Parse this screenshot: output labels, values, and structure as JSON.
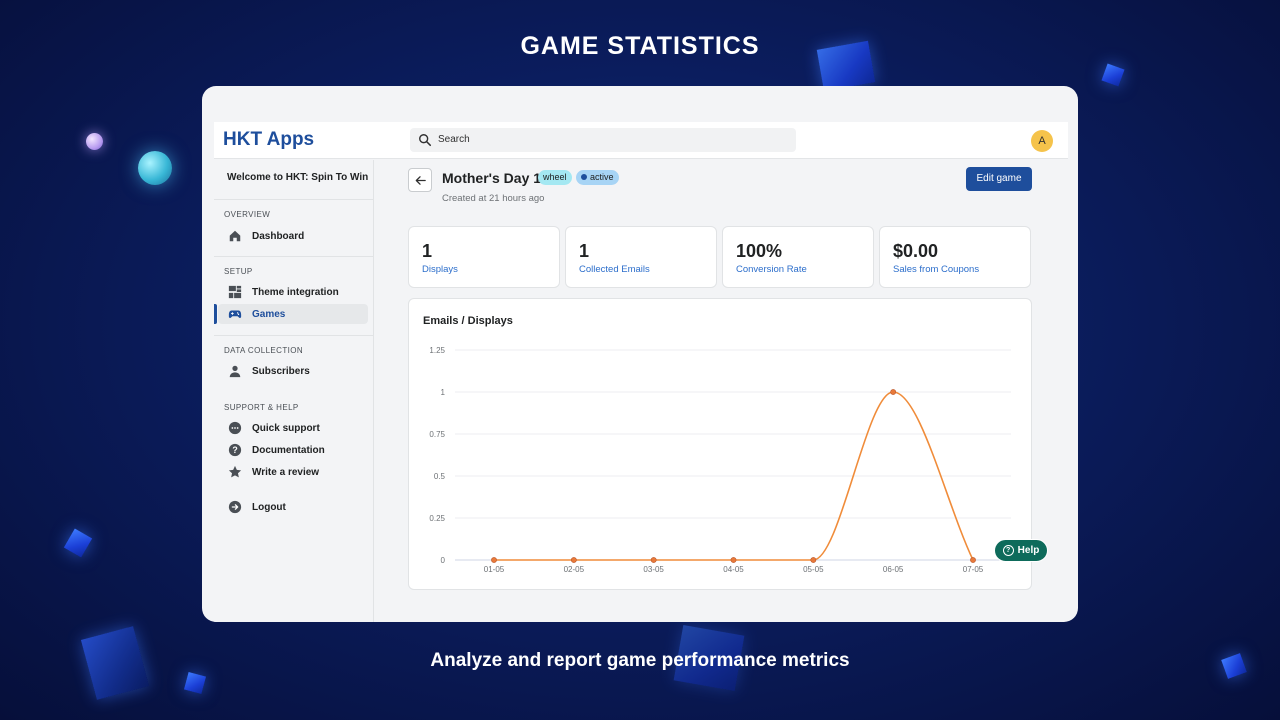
{
  "hero": {
    "title": "GAME STATISTICS",
    "caption": "Analyze and report game performance metrics"
  },
  "colors": {
    "brand": "#1e4e9c",
    "accent_line": "#f08c3a",
    "help": "#0e6b5b",
    "avatar": "#f5c34b"
  },
  "header": {
    "logo": "HKT Apps",
    "search_placeholder": "Search",
    "avatar_initial": "A"
  },
  "sidebar": {
    "welcome": "Welcome to HKT: Spin To Win",
    "sections": [
      {
        "title": "OVERVIEW",
        "items": [
          {
            "label": "Dashboard",
            "icon": "home-icon"
          }
        ]
      },
      {
        "title": "SETUP",
        "items": [
          {
            "label": "Theme integration",
            "icon": "dashboard-grid-icon"
          },
          {
            "label": "Games",
            "icon": "gamepad-icon",
            "active": true
          }
        ]
      },
      {
        "title": "DATA COLLECTION",
        "items": [
          {
            "label": "Subscribers",
            "icon": "person-icon"
          }
        ]
      },
      {
        "title": "SUPPORT & HELP",
        "items": [
          {
            "label": "Quick support",
            "icon": "chat-icon"
          },
          {
            "label": "Documentation",
            "icon": "question-icon"
          },
          {
            "label": "Write a review",
            "icon": "star-icon"
          }
        ]
      }
    ],
    "logout": "Logout"
  },
  "game": {
    "title": "Mother's Day 1",
    "badge_type": "wheel",
    "badge_status": "active",
    "created": "Created at 21 hours ago",
    "edit_label": "Edit game"
  },
  "stats": [
    {
      "value": "1",
      "label": "Displays"
    },
    {
      "value": "1",
      "label": "Collected Emails"
    },
    {
      "value": "100%",
      "label": "Conversion Rate"
    },
    {
      "value": "$0.00",
      "label": "Sales from Coupons"
    }
  ],
  "help_label": "Help",
  "chart_data": {
    "type": "line",
    "title": "Emails / Displays",
    "categories": [
      "01-05",
      "02-05",
      "03-05",
      "04-05",
      "05-05",
      "06-05",
      "07-05"
    ],
    "series": [
      {
        "values": [
          0,
          0,
          0,
          0,
          0,
          1,
          0
        ]
      }
    ],
    "ylim": [
      0,
      1.25
    ],
    "yticks": [
      "0",
      "0.25",
      "0.5",
      "0.75",
      "1",
      "1.25"
    ],
    "grid": true,
    "curve": "smooth"
  }
}
